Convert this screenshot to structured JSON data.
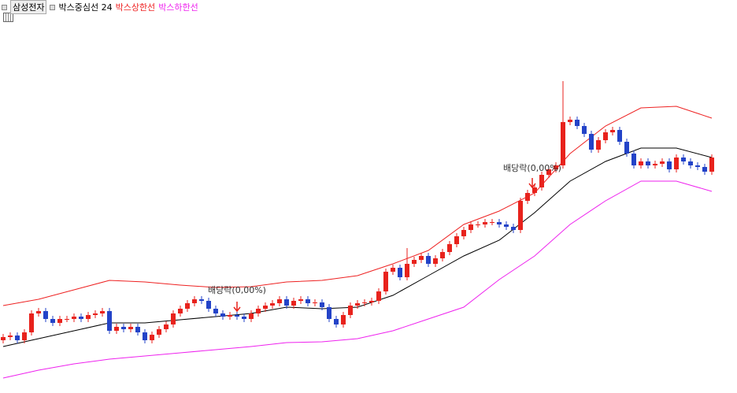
{
  "chart_data": {
    "type": "candlestick",
    "title": "삼성전자",
    "ylim": [
      0,
      500
    ],
    "up_color": "#e8221c",
    "down_color": "#2343c8",
    "ohlc": [
      [
        68,
        76,
        64,
        72
      ],
      [
        72,
        78,
        68,
        74
      ],
      [
        74,
        78,
        64,
        68
      ],
      [
        68,
        82,
        64,
        78
      ],
      [
        78,
        106,
        74,
        102
      ],
      [
        102,
        109,
        98,
        105
      ],
      [
        105,
        109,
        91,
        95
      ],
      [
        95,
        99,
        86,
        90
      ],
      [
        90,
        99,
        86,
        95
      ],
      [
        95,
        99,
        91,
        95
      ],
      [
        95,
        102,
        91,
        98
      ],
      [
        98,
        102,
        91,
        95
      ],
      [
        95,
        104,
        91,
        100
      ],
      [
        100,
        106,
        96,
        102
      ],
      [
        102,
        109,
        98,
        105
      ],
      [
        105,
        109,
        76,
        80
      ],
      [
        80,
        89,
        76,
        85
      ],
      [
        85,
        89,
        78,
        82
      ],
      [
        82,
        89,
        78,
        85
      ],
      [
        85,
        89,
        74,
        78
      ],
      [
        78,
        82,
        64,
        68
      ],
      [
        68,
        79,
        64,
        75
      ],
      [
        75,
        86,
        71,
        82
      ],
      [
        82,
        92,
        78,
        88
      ],
      [
        88,
        106,
        84,
        102
      ],
      [
        102,
        112,
        98,
        108
      ],
      [
        108,
        119,
        104,
        115
      ],
      [
        115,
        124,
        111,
        120
      ],
      [
        120,
        124,
        114,
        118
      ],
      [
        118,
        122,
        104,
        108
      ],
      [
        108,
        112,
        98,
        102
      ],
      [
        102,
        106,
        94,
        98
      ],
      [
        98,
        104,
        94,
        100
      ],
      [
        100,
        104,
        94,
        98
      ],
      [
        98,
        102,
        91,
        95
      ],
      [
        95,
        106,
        91,
        102
      ],
      [
        102,
        112,
        98,
        108
      ],
      [
        108,
        116,
        104,
        112
      ],
      [
        112,
        119,
        108,
        115
      ],
      [
        115,
        124,
        111,
        120
      ],
      [
        120,
        124,
        108,
        112
      ],
      [
        112,
        122,
        108,
        118
      ],
      [
        118,
        124,
        114,
        120
      ],
      [
        120,
        124,
        111,
        115
      ],
      [
        115,
        120,
        111,
        116
      ],
      [
        116,
        120,
        106,
        110
      ],
      [
        110,
        114,
        91,
        95
      ],
      [
        95,
        99,
        84,
        88
      ],
      [
        88,
        104,
        84,
        100
      ],
      [
        100,
        116,
        96,
        112
      ],
      [
        112,
        119,
        108,
        115
      ],
      [
        115,
        120,
        111,
        116
      ],
      [
        116,
        122,
        112,
        118
      ],
      [
        118,
        134,
        114,
        130
      ],
      [
        130,
        159,
        126,
        155
      ],
      [
        155,
        164,
        151,
        160
      ],
      [
        160,
        164,
        144,
        148
      ],
      [
        148,
        185,
        144,
        165
      ],
      [
        165,
        174,
        161,
        170
      ],
      [
        170,
        179,
        166,
        175
      ],
      [
        175,
        179,
        161,
        165
      ],
      [
        165,
        176,
        161,
        172
      ],
      [
        172,
        184,
        168,
        180
      ],
      [
        180,
        194,
        176,
        190
      ],
      [
        190,
        204,
        186,
        200
      ],
      [
        200,
        212,
        196,
        208
      ],
      [
        208,
        219,
        204,
        215
      ],
      [
        215,
        219,
        211,
        215
      ],
      [
        215,
        222,
        211,
        218
      ],
      [
        218,
        222,
        214,
        218
      ],
      [
        218,
        222,
        211,
        215
      ],
      [
        215,
        219,
        208,
        212
      ],
      [
        212,
        216,
        204,
        208
      ],
      [
        208,
        249,
        204,
        245
      ],
      [
        245,
        259,
        241,
        255
      ],
      [
        255,
        266,
        251,
        262
      ],
      [
        262,
        282,
        258,
        278
      ],
      [
        278,
        289,
        274,
        285
      ],
      [
        285,
        294,
        281,
        290
      ],
      [
        290,
        397,
        286,
        345
      ],
      [
        345,
        352,
        341,
        348
      ],
      [
        348,
        352,
        336,
        340
      ],
      [
        340,
        344,
        326,
        330
      ],
      [
        330,
        334,
        306,
        310
      ],
      [
        310,
        326,
        306,
        322
      ],
      [
        322,
        336,
        318,
        332
      ],
      [
        332,
        339,
        328,
        335
      ],
      [
        335,
        339,
        316,
        320
      ],
      [
        320,
        324,
        301,
        305
      ],
      [
        305,
        309,
        286,
        290
      ],
      [
        290,
        299,
        286,
        295
      ],
      [
        295,
        299,
        286,
        290
      ],
      [
        290,
        296,
        286,
        292
      ],
      [
        292,
        299,
        288,
        295
      ],
      [
        295,
        299,
        281,
        285
      ],
      [
        285,
        304,
        281,
        300
      ],
      [
        300,
        304,
        291,
        295
      ],
      [
        295,
        299,
        286,
        290
      ],
      [
        290,
        294,
        284,
        288
      ],
      [
        288,
        292,
        278,
        282
      ],
      [
        282,
        304,
        278,
        300
      ]
    ],
    "series": [
      {
        "name": "박스중심선 24",
        "color": "#000000",
        "x": [
          0,
          5,
          10,
          15,
          20,
          25,
          30,
          35,
          40,
          45,
          50,
          55,
          60,
          65,
          70,
          75,
          80,
          85,
          90,
          95,
          100
        ],
        "values": [
          60,
          70,
          80,
          90,
          90,
          94,
          98,
          102,
          110,
          108,
          110,
          125,
          150,
          175,
          195,
          230,
          270,
          295,
          312,
          312,
          300
        ]
      },
      {
        "name": "박스상한선",
        "color": "#ee2222",
        "x": [
          0,
          5,
          10,
          15,
          20,
          25,
          30,
          35,
          40,
          45,
          50,
          55,
          60,
          65,
          70,
          75,
          80,
          85,
          90,
          95,
          100
        ],
        "values": [
          112,
          120,
          132,
          144,
          142,
          138,
          135,
          136,
          142,
          144,
          150,
          165,
          182,
          215,
          232,
          255,
          305,
          340,
          363,
          365,
          350
        ]
      },
      {
        "name": "박스하한선",
        "color": "#ee22ee",
        "x": [
          0,
          5,
          10,
          15,
          20,
          25,
          30,
          35,
          40,
          45,
          50,
          55,
          60,
          65,
          70,
          75,
          80,
          85,
          90,
          95,
          100
        ],
        "values": [
          20,
          30,
          38,
          44,
          48,
          52,
          56,
          60,
          65,
          66,
          70,
          80,
          95,
          110,
          145,
          175,
          215,
          245,
          270,
          270,
          257
        ]
      }
    ],
    "annotations": [
      "배당락(0,00%)",
      "배당락(0,00%)"
    ]
  }
}
